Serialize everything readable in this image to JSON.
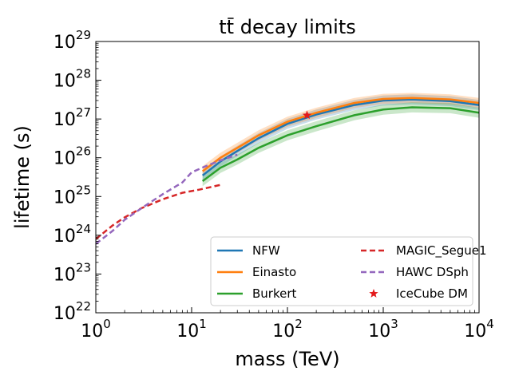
{
  "chart_data": {
    "type": "line",
    "title": "tt̄ decay limits",
    "title_parts": {
      "main": "t",
      "bar": "t",
      "rest": " decay limits"
    },
    "xlabel": "mass (TeV)",
    "ylabel": "lifetime (s)",
    "x_scale": "log",
    "y_scale": "log",
    "xlim": [
      1,
      10000
    ],
    "ylim": [
      1e+22,
      1e+29
    ],
    "x_ticks": [
      {
        "base": "10",
        "exp": "0",
        "value": 1
      },
      {
        "base": "10",
        "exp": "1",
        "value": 10
      },
      {
        "base": "10",
        "exp": "2",
        "value": 100
      },
      {
        "base": "10",
        "exp": "3",
        "value": 1000
      },
      {
        "base": "10",
        "exp": "4",
        "value": 10000
      }
    ],
    "y_ticks": [
      {
        "base": "10",
        "exp": "22",
        "value": 1e+22
      },
      {
        "base": "10",
        "exp": "23",
        "value": 1e+23
      },
      {
        "base": "10",
        "exp": "24",
        "value": 1e+24
      },
      {
        "base": "10",
        "exp": "25",
        "value": 1e+25
      },
      {
        "base": "10",
        "exp": "26",
        "value": 1e+26
      },
      {
        "base": "10",
        "exp": "27",
        "value": 1e+27
      },
      {
        "base": "10",
        "exp": "28",
        "value": 1e+28
      },
      {
        "base": "10",
        "exp": "29",
        "value": 1e+29
      }
    ],
    "legend_position": "lower-right",
    "series": [
      {
        "name": "NFW",
        "color": "#1f77b4",
        "style": "solid",
        "band": true,
        "x": [
          13,
          20,
          30,
          50,
          100,
          200,
          500,
          1000,
          2000,
          5000,
          10000
        ],
        "y": [
          3.5e+25,
          8e+25,
          1.5e+26,
          3.2e+26,
          7.5e+26,
          1.3e+27,
          2.3e+27,
          3e+27,
          3.2e+27,
          2.9e+27,
          2.3e+27
        ]
      },
      {
        "name": "Einasto",
        "color": "#ff7f0e",
        "style": "solid",
        "band": true,
        "x": [
          13,
          20,
          30,
          50,
          100,
          200,
          500,
          1000,
          2000,
          5000,
          10000
        ],
        "y": [
          4.5e+25,
          1e+26,
          1.8e+26,
          3.8e+26,
          8.5e+26,
          1.45e+27,
          2.6e+27,
          3.3e+27,
          3.5e+27,
          3.2e+27,
          2.6e+27
        ]
      },
      {
        "name": "Burkert",
        "color": "#2ca02c",
        "style": "solid",
        "band": true,
        "x": [
          13,
          20,
          30,
          50,
          100,
          200,
          500,
          1000,
          2000,
          5000,
          10000
        ],
        "y": [
          2.5e+25,
          5.5e+25,
          9e+25,
          1.8e+26,
          3.8e+26,
          6.5e+26,
          1.25e+27,
          1.75e+27,
          2e+27,
          1.9e+27,
          1.45e+27
        ]
      },
      {
        "name": "MAGIC_Segue1",
        "color": "#d62728",
        "style": "dashed",
        "band": false,
        "x": [
          1,
          1.5,
          2,
          3,
          5,
          8,
          12,
          20
        ],
        "y": [
          8e+23,
          1.8e+24,
          2.9e+24,
          5e+24,
          8.5e+24,
          1.25e+25,
          1.5e+25,
          2e+25
        ]
      },
      {
        "name": "HAWC DSph",
        "color": "#9467bd",
        "style": "dashed",
        "band": false,
        "x": [
          1,
          1.5,
          2,
          3,
          5,
          8,
          10,
          15,
          20,
          30
        ],
        "y": [
          6e+23,
          1.3e+24,
          2.5e+24,
          5e+24,
          1.15e+25,
          2.3e+25,
          4.2e+25,
          6.5e+25,
          8.5e+25,
          1.2e+26
        ]
      }
    ],
    "markers": [
      {
        "name": "IceCube DM",
        "color": "#e31a1c",
        "symbol": "star",
        "x": 160,
        "y": 1.25e+27
      }
    ]
  }
}
